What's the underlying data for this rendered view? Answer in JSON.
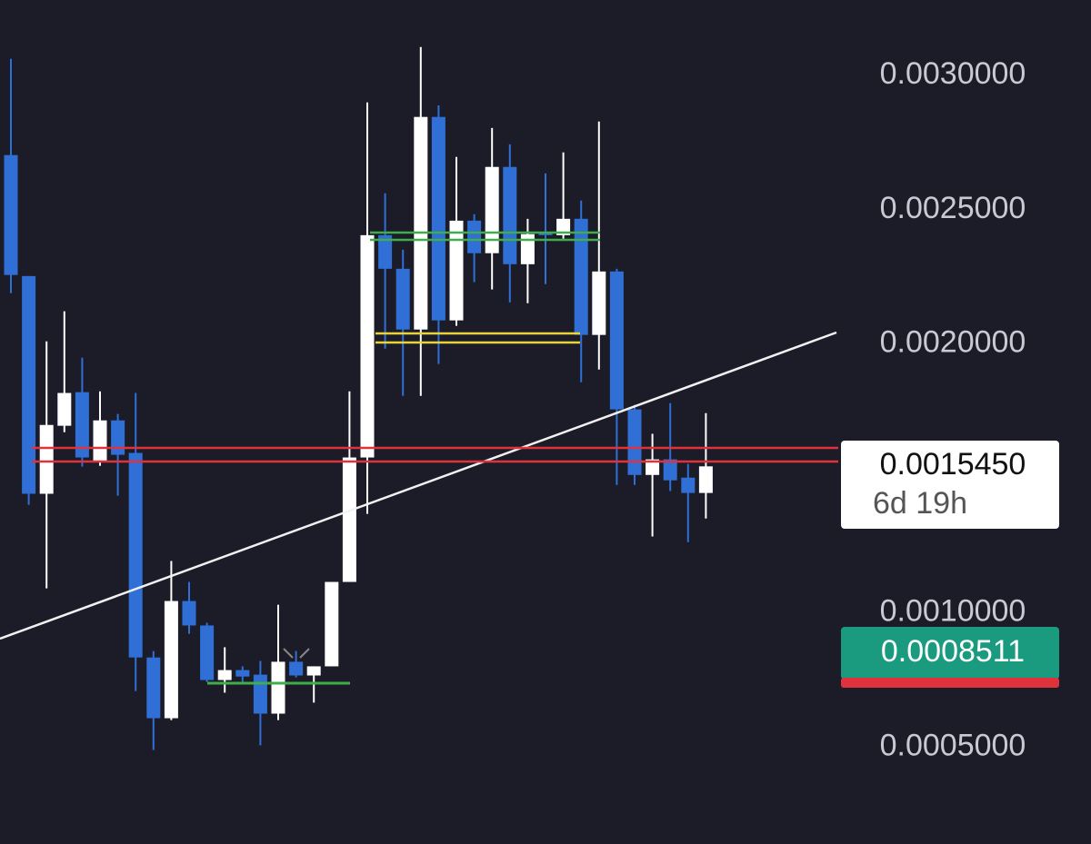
{
  "chart_data": {
    "type": "candlestick",
    "up_color": "#ffffff",
    "down_color": "#2f6fd6",
    "open": [
      0.002703,
      0.002253,
      0.001443,
      0.001696,
      0.001821,
      0.001561,
      0.001716,
      0.001595,
      0.000834,
      0.000608,
      0.001044,
      0.000953,
      0.00075,
      0.000787,
      0.00077,
      0.000625,
      0.000818,
      0.000767,
      0.000801,
      0.001115,
      0.001578,
      0.002405,
      0.00228,
      0.002054,
      0.002845,
      0.002088,
      0.002459,
      0.002338,
      0.002659,
      0.002297,
      0.002416,
      0.002405,
      0.002466,
      0.002034,
      0.00227,
      0.001757,
      0.001513,
      0.001571,
      0.001503,
      0.001446
    ],
    "high": [
      0.003061,
      0.002253,
      0.00201,
      0.002122,
      0.001949,
      0.001824,
      0.00174,
      0.001818,
      0.000858,
      0.001193,
      0.001115,
      0.000963,
      0.000872,
      0.000801,
      0.000821,
      0.00103,
      0.000858,
      0.000801,
      0.001115,
      0.001824,
      0.002899,
      0.002561,
      0.002351,
      0.003105,
      0.002888,
      0.002696,
      0.002483,
      0.002804,
      0.002743,
      0.002466,
      0.002635,
      0.002713,
      0.002534,
      0.002828,
      0.00228,
      0.001774,
      0.001666,
      0.00178,
      0.001554,
      0.001743
    ],
    "low": [
      0.002189,
      0.001402,
      0.001091,
      0.001672,
      0.001544,
      0.001547,
      0.001436,
      0.000709,
      0.00049,
      0.000601,
      0.000922,
      0.000743,
      0.000703,
      0.000743,
      0.000507,
      0.000601,
      0.00076,
      0.000666,
      0.000801,
      0.001115,
      0.001368,
      0.001983,
      0.001807,
      0.001807,
      0.001926,
      0.002068,
      0.00223,
      0.002203,
      0.002155,
      0.002152,
      0.002223,
      0.002392,
      0.001858,
      0.001905,
      0.001476,
      0.001476,
      0.001284,
      0.001453,
      0.001263,
      0.001351
    ],
    "close": [
      0.002257,
      0.001443,
      0.001699,
      0.001818,
      0.001578,
      0.001716,
      0.001588,
      0.000834,
      0.000608,
      0.001044,
      0.000953,
      0.00075,
      0.000787,
      0.000763,
      0.000625,
      0.000818,
      0.000767,
      0.000801,
      0.001115,
      0.001578,
      0.002405,
      0.00228,
      0.002054,
      0.002845,
      0.002088,
      0.002459,
      0.002338,
      0.002659,
      0.002297,
      0.002409,
      0.002405,
      0.002466,
      0.002034,
      0.00227,
      0.001757,
      0.001513,
      0.001571,
      0.001493,
      0.001446,
      0.001545
    ],
    "ylim": [
      0.00014,
      0.00328
    ],
    "yticks": [
      {
        "value": 0.0005,
        "label": "0.0005000"
      },
      {
        "value": 0.001,
        "label": "0.0010000"
      },
      {
        "value": 0.002,
        "label": "0.0020000"
      },
      {
        "value": 0.0025,
        "label": "0.0025000"
      },
      {
        "value": 0.003,
        "label": "0.0030000"
      }
    ],
    "grid": false,
    "last_price": {
      "value": 0.001545,
      "label": "0.0015450",
      "countdown": "6d 19h"
    },
    "price_marker": {
      "value": 0.0008511,
      "label": "0.0008511"
    }
  }
}
